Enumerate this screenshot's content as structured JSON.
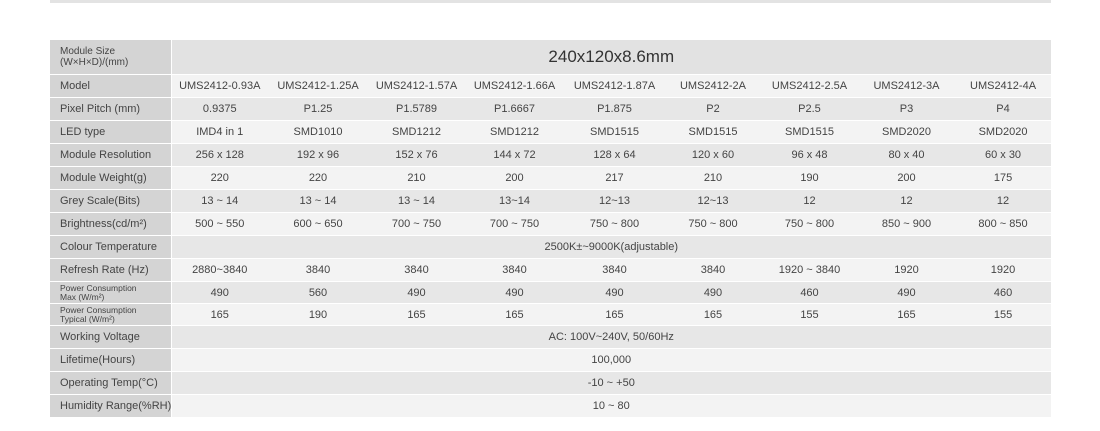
{
  "module_size": {
    "label_line1": "Module Size",
    "label_line2": "(W×H×D)/(mm)",
    "value": "240x120x8.6mm"
  },
  "rows": [
    {
      "label": "Model",
      "values": [
        "UMS2412-0.93A",
        "UMS2412-1.25A",
        "UMS2412-1.57A",
        "UMS2412-1.66A",
        "UMS2412-1.87A",
        "UMS2412-2A",
        "UMS2412-2.5A",
        "UMS2412-3A",
        "UMS2412-4A"
      ]
    },
    {
      "label": "Pixel Pitch (mm)",
      "values": [
        "0.9375",
        "P1.25",
        "P1.5789",
        "P1.6667",
        "P1.875",
        "P2",
        "P2.5",
        "P3",
        "P4"
      ]
    },
    {
      "label": "LED type",
      "values": [
        "IMD4 in 1",
        "SMD1010",
        "SMD1212",
        "SMD1212",
        "SMD1515",
        "SMD1515",
        "SMD1515",
        "SMD2020",
        "SMD2020"
      ]
    },
    {
      "label": "Module Resolution",
      "values": [
        "256 x 128",
        "192 x 96",
        "152 x 76",
        "144 x 72",
        "128 x 64",
        "120 x 60",
        "96 x 48",
        "80 x 40",
        "60 x 30"
      ]
    },
    {
      "label": "Module Weight(g)",
      "values": [
        "220",
        "220",
        "210",
        "200",
        "217",
        "210",
        "190",
        "200",
        "175"
      ]
    },
    {
      "label": "Grey Scale(Bits)",
      "values": [
        "13 ~ 14",
        "13 ~ 14",
        "13 ~ 14",
        "13~14",
        "12~13",
        "12~13",
        "12",
        "12",
        "12"
      ]
    },
    {
      "label": "Brightness(cd/m²)",
      "values": [
        "500 ~ 550",
        "600 ~ 650",
        "700 ~ 750",
        "700 ~ 750",
        "750 ~ 800",
        "750 ~ 800",
        "750 ~ 800",
        "850 ~ 900",
        "800 ~ 850"
      ]
    }
  ],
  "colour_temperature": {
    "label": "Colour Temperature",
    "value": "2500K±~9000K(adjustable)"
  },
  "refresh_rate": {
    "label": "Refresh Rate (Hz)",
    "values": [
      "2880~3840",
      "3840",
      "3840",
      "3840",
      "3840",
      "3840",
      "1920 ~ 3840",
      "1920",
      "1920"
    ]
  },
  "power_max": {
    "label_line1": "Power Consumption",
    "label_line2": "Max (W/m²)",
    "values": [
      "490",
      "560",
      "490",
      "490",
      "490",
      "490",
      "460",
      "490",
      "460"
    ]
  },
  "power_typical": {
    "label_line1": "Power Consumption",
    "label_line2": "Typical (W/m²)",
    "values": [
      "165",
      "190",
      "165",
      "165",
      "165",
      "165",
      "155",
      "165",
      "155"
    ]
  },
  "working_voltage": {
    "label": "Working Voltage",
    "value": "AC: 100V~240V, 50/60Hz"
  },
  "lifetime": {
    "label": "Lifetime(Hours)",
    "value": "100,000"
  },
  "operating_temp": {
    "label": "Operating Temp(°C)",
    "value": "-10 ~ +50"
  },
  "humidity": {
    "label": "Humidity Range(%RH)",
    "value": "10 ~ 80"
  }
}
